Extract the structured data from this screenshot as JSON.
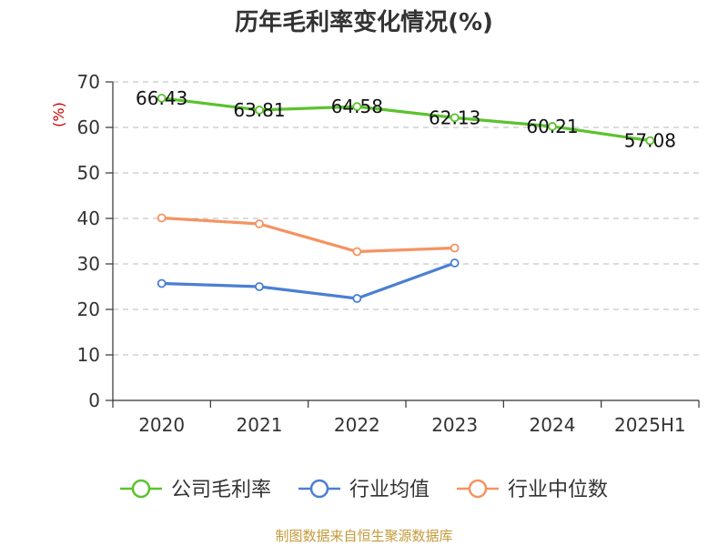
{
  "chart_data": {
    "type": "line",
    "title": "历年毛利率变化情况(%)",
    "ylabel": "(%)",
    "xlabel": "",
    "ylim": [
      0,
      70
    ],
    "y_ticks": [
      0,
      10,
      20,
      30,
      40,
      50,
      60,
      70
    ],
    "categories": [
      "2020",
      "2021",
      "2022",
      "2023",
      "2024",
      "2025H1"
    ],
    "grid": true,
    "legend_position": "bottom",
    "series": [
      {
        "name": "公司毛利率",
        "color": "#5cc22d",
        "values": [
          66.43,
          63.81,
          64.58,
          62.13,
          60.21,
          57.08
        ],
        "show_labels": true
      },
      {
        "name": "行业均值",
        "color": "#4a7fd4",
        "values": [
          25.7,
          25.0,
          22.4,
          30.2,
          null,
          null
        ],
        "show_labels": false
      },
      {
        "name": "行业中位数",
        "color": "#f59362",
        "values": [
          40.1,
          38.8,
          32.7,
          33.5,
          null,
          null
        ],
        "show_labels": false
      }
    ]
  },
  "footer": {
    "source": "制图数据来自恒生聚源数据库"
  }
}
